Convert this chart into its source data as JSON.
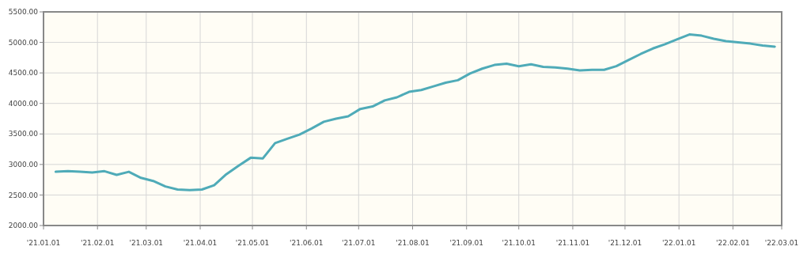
{
  "chart_data": {
    "type": "line",
    "x": [
      "2021-01-08",
      "2021-01-15",
      "2021-01-22",
      "2021-01-29",
      "2021-02-05",
      "2021-02-12",
      "2021-02-19",
      "2021-02-26",
      "2021-03-05",
      "2021-03-12",
      "2021-03-19",
      "2021-03-26",
      "2021-04-02",
      "2021-04-09",
      "2021-04-16",
      "2021-04-23",
      "2021-04-30",
      "2021-05-07",
      "2021-05-14",
      "2021-05-21",
      "2021-05-28",
      "2021-06-04",
      "2021-06-11",
      "2021-06-18",
      "2021-06-25",
      "2021-07-02",
      "2021-07-09",
      "2021-07-16",
      "2021-07-23",
      "2021-07-30",
      "2021-08-06",
      "2021-08-13",
      "2021-08-20",
      "2021-08-27",
      "2021-09-03",
      "2021-09-10",
      "2021-09-17",
      "2021-09-24",
      "2021-10-01",
      "2021-10-08",
      "2021-10-15",
      "2021-10-22",
      "2021-10-29",
      "2021-11-05",
      "2021-11-12",
      "2021-11-19",
      "2021-11-26",
      "2021-12-03",
      "2021-12-10",
      "2021-12-17",
      "2021-12-24",
      "2021-12-31",
      "2022-01-07",
      "2022-01-14",
      "2022-01-21",
      "2022-01-28",
      "2022-02-04",
      "2022-02-11",
      "2022-02-18",
      "2022-02-25"
    ],
    "series": [
      {
        "color": "#4fabb8",
        "values": [
          2880,
          2890,
          2880,
          2870,
          2890,
          2830,
          2880,
          2780,
          2730,
          2640,
          2590,
          2580,
          2590,
          2660,
          2840,
          2980,
          3110,
          3100,
          3350,
          3420,
          3490,
          3590,
          3700,
          3750,
          3790,
          3910,
          3950,
          4050,
          4100,
          4190,
          4220,
          4280,
          4340,
          4380,
          4490,
          4570,
          4630,
          4650,
          4610,
          4640,
          4600,
          4590,
          4570,
          4540,
          4550,
          4550,
          4610,
          4710,
          4810,
          4900,
          4970,
          5050,
          5130,
          5110,
          5060,
          5020,
          5000,
          4980,
          4950,
          4930
        ]
      }
    ],
    "xlim": [
      "2021-01-01",
      "2022-03-01"
    ],
    "xticks": [
      {
        "value": "2021-01-01",
        "label": "'21.01.01"
      },
      {
        "value": "2021-02-01",
        "label": "'21.02.01"
      },
      {
        "value": "2021-03-01",
        "label": "'21.03.01"
      },
      {
        "value": "2021-04-01",
        "label": "'21.04.01"
      },
      {
        "value": "2021-05-01",
        "label": "'21.05.01"
      },
      {
        "value": "2021-06-01",
        "label": "'21.06.01"
      },
      {
        "value": "2021-07-01",
        "label": "'21.07.01"
      },
      {
        "value": "2021-08-01",
        "label": "'21.08.01"
      },
      {
        "value": "2021-09-01",
        "label": "'21.09.01"
      },
      {
        "value": "2021-10-01",
        "label": "'21.10.01"
      },
      {
        "value": "2021-11-01",
        "label": "'21.11.01"
      },
      {
        "value": "2021-12-01",
        "label": "'21.12.01"
      },
      {
        "value": "2022-01-01",
        "label": "'22.01.01"
      },
      {
        "value": "2022-02-01",
        "label": "'22.02.01"
      },
      {
        "value": "2022-03-01",
        "label": "'22.03.01"
      }
    ],
    "ylim": [
      2000,
      5500
    ],
    "yticks": [
      {
        "value": 2000,
        "label": "2000.00"
      },
      {
        "value": 2500,
        "label": "2500.00"
      },
      {
        "value": 3000,
        "label": "3000.00"
      },
      {
        "value": 3500,
        "label": "3500.00"
      },
      {
        "value": 4000,
        "label": "4000.00"
      },
      {
        "value": 4500,
        "label": "4500.00"
      },
      {
        "value": 5000,
        "label": "5000.00"
      },
      {
        "value": 5500,
        "label": "5500.00"
      }
    ],
    "grid": true,
    "marker": "none",
    "line_style": "solid"
  }
}
